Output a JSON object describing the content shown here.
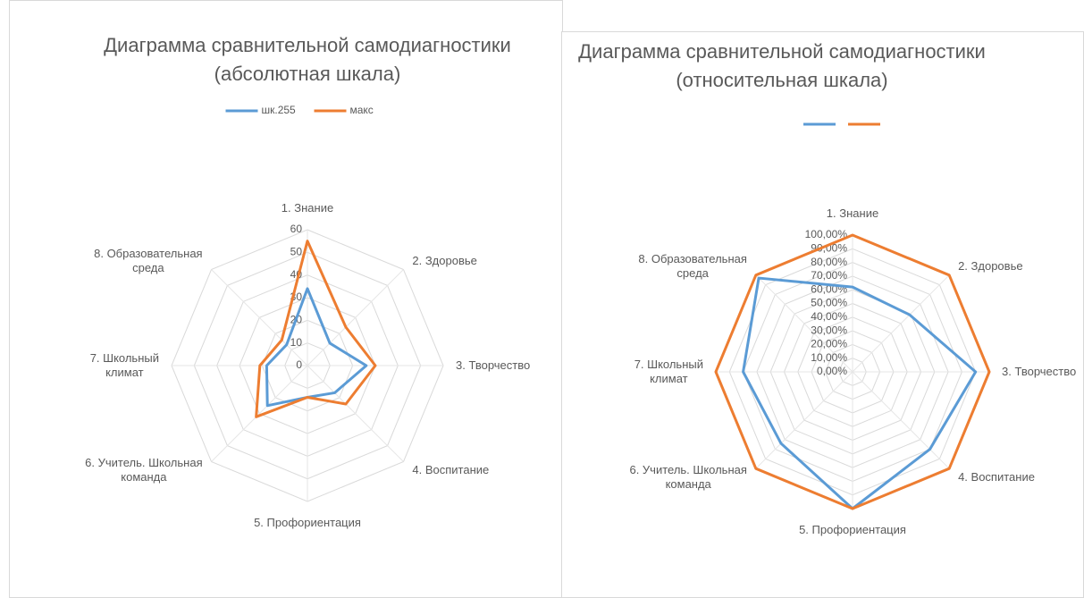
{
  "chart_data": [
    {
      "type": "radar",
      "title": "Диаграмма сравнительной самодиагностики\n(абсолютная шкала)",
      "categories": [
        "1. Знание",
        "2. Здоровье",
        "3. Творчество",
        "4. Воспитание",
        "5. Профориентация",
        "6. Учитель. Школьная\nкоманда",
        "7. Школьный\nклимат",
        "8. Образовательная\nсреда"
      ],
      "series": [
        {
          "name": "шк.255",
          "color": "#5b9bd5",
          "values": [
            34,
            14,
            26,
            17,
            14,
            25,
            18,
            13
          ]
        },
        {
          "name": "макс",
          "color": "#ed7d31",
          "values": [
            55,
            24,
            30,
            24,
            14,
            32,
            21,
            16
          ]
        }
      ],
      "ylim": [
        0,
        60
      ],
      "yticks": [
        0,
        10,
        20,
        30,
        40,
        50,
        60
      ],
      "grid": true
    },
    {
      "type": "radar",
      "title": "Диаграмма сравнительной самодиагностики\n(относительная шкала)",
      "categories": [
        "1. Знание",
        "2. Здоровье",
        "3. Творчество",
        "4. Воспитание",
        "5. Профориентация",
        "6. Учитель. Школьная\nкоманда",
        "7. Школьный\nклимат",
        "8. Образовательная\nсреда"
      ],
      "series": [
        {
          "color": "#5b9bd5",
          "values": [
            62,
            59,
            90,
            80,
            100,
            74,
            80,
            97
          ]
        },
        {
          "color": "#ed7d31",
          "values": [
            100,
            100,
            100,
            100,
            100,
            100,
            100,
            100
          ]
        }
      ],
      "ylim": [
        0,
        100
      ],
      "yticks": [
        {
          "value": 0,
          "label": "0,00%"
        },
        {
          "value": 10,
          "label": "10,00%"
        },
        {
          "value": 20,
          "label": "20,00%"
        },
        {
          "value": 30,
          "label": "30,00%"
        },
        {
          "value": 40,
          "label": "40,00%"
        },
        {
          "value": 50,
          "label": "50,00%"
        },
        {
          "value": 60,
          "label": "60,00%"
        },
        {
          "value": 70,
          "label": "70,00%"
        },
        {
          "value": 80,
          "label": "80,00%"
        },
        {
          "value": 90,
          "label": "90,00%"
        },
        {
          "value": 100,
          "label": "100,00%"
        }
      ],
      "grid": true
    }
  ]
}
